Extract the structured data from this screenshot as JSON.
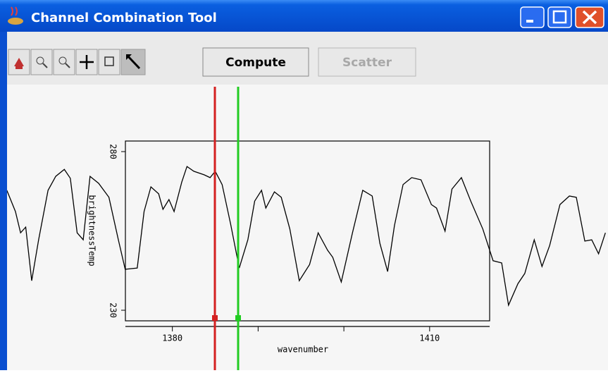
{
  "window": {
    "title": "Channel Combination Tool"
  },
  "toolbar": {
    "buttons": [
      "Compute",
      "Scatter"
    ]
  },
  "chart_data": {
    "type": "line",
    "xlabel": "wavenumber",
    "ylabel": "brightnessTemp",
    "color": "#000000",
    "x": [
      1360.7,
      1361.7,
      1362.3,
      1362.9,
      1363.6,
      1364.4,
      1365.5,
      1366.4,
      1367.4,
      1368.1,
      1368.9,
      1369.6,
      1370.4,
      1371.4,
      1372.6,
      1373.7,
      1374.5,
      1375.9,
      1376.7,
      1377.5,
      1378.4,
      1378.9,
      1379.6,
      1380.2,
      1381.1,
      1381.7,
      1382.5,
      1383.7,
      1384.4,
      1385.0,
      1385.8,
      1386.8,
      1387.8,
      1388.8,
      1389.6,
      1390.4,
      1390.9,
      1391.9,
      1392.7,
      1393.7,
      1394.8,
      1396.0,
      1397.0,
      1398.1,
      1398.7,
      1399.7,
      1401.0,
      1402.2,
      1403.3,
      1404.2,
      1405.1,
      1405.9,
      1406.9,
      1407.9,
      1409.0,
      1410.2,
      1410.8,
      1411.8,
      1412.6,
      1413.7,
      1414.8,
      1416.2,
      1417.4,
      1418.4,
      1419.2,
      1420.3,
      1421.1,
      1422.2,
      1423.1,
      1424.0,
      1425.2,
      1426.3,
      1427.1,
      1428.1,
      1428.9,
      1429.7,
      1430.5
    ],
    "values": [
      267.8,
      261.1,
      254.4,
      256.2,
      239.3,
      252.2,
      267.8,
      272.2,
      274.4,
      271.6,
      254.4,
      252.2,
      272.2,
      270,
      265.6,
      252.2,
      242.9,
      243.3,
      261.1,
      268.9,
      266.7,
      261.8,
      264.9,
      261.1,
      270.4,
      275.3,
      273.8,
      272.7,
      271.8,
      273.8,
      269.6,
      257.1,
      243.3,
      252.2,
      264.4,
      267.8,
      262.2,
      267.3,
      265.6,
      255.6,
      239.3,
      244.4,
      254.4,
      248.9,
      246.7,
      238.9,
      254.4,
      267.8,
      266,
      251.1,
      242.2,
      256.7,
      269.6,
      271.8,
      271.1,
      263.3,
      262.2,
      254.9,
      268.2,
      271.8,
      264.4,
      255.6,
      245.6,
      244.9,
      231.6,
      238.4,
      241.6,
      252.2,
      243.8,
      250.4,
      263.3,
      266,
      265.6,
      251.8,
      252.2,
      247.8,
      254.4
    ],
    "xlim": [
      1359.9,
      1430.8
    ],
    "ylim": [
      230,
      280
    ],
    "xticks": [
      1380,
      1410
    ],
    "xminor": [
      1390,
      1400
    ],
    "yticks": [
      280,
      230
    ]
  }
}
